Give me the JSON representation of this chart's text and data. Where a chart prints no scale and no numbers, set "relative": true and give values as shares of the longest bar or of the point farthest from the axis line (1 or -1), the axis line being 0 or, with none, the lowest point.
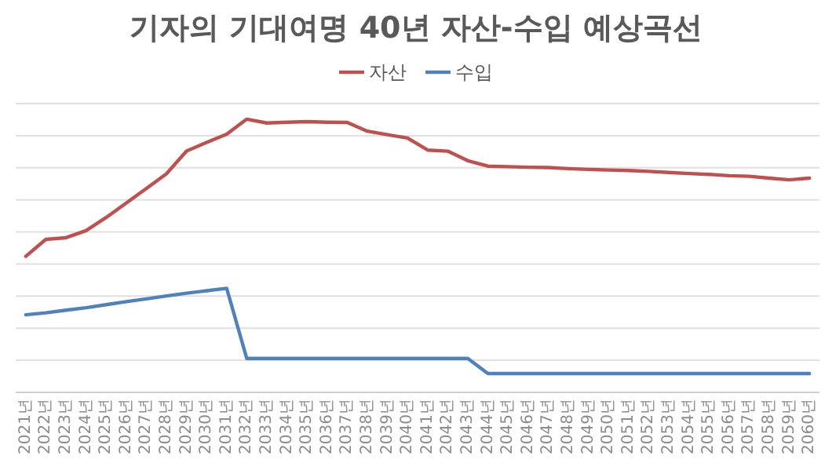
{
  "chart_data": {
    "type": "line",
    "title": "기자의 기대여명 40년 자산-수입 예상곡선",
    "relative": true,
    "grid": "y",
    "legend": "top",
    "categories": [
      "2021년",
      "2022년",
      "2023년",
      "2024년",
      "2025년",
      "2026년",
      "2027년",
      "2028년",
      "2029년",
      "2030년",
      "2031년",
      "2032년",
      "2033년",
      "2034년",
      "2035년",
      "2036년",
      "2037년",
      "2038년",
      "2039년",
      "2040년",
      "2041년",
      "2042년",
      "2043년",
      "2044년",
      "2045년",
      "2046년",
      "2047년",
      "2048년",
      "2049년",
      "2050년",
      "2051년",
      "2052년",
      "2053년",
      "2054년",
      "2055년",
      "2056년",
      "2057년",
      "2058년",
      "2059년",
      "2060년"
    ],
    "series": [
      {
        "name": "자산",
        "color": "#c0504d",
        "values": [
          0.498,
          0.56,
          0.566,
          0.592,
          0.64,
          0.693,
          0.746,
          0.8,
          0.883,
          0.915,
          0.945,
          1.0,
          0.986,
          0.989,
          0.991,
          0.989,
          0.988,
          0.956,
          0.943,
          0.931,
          0.887,
          0.883,
          0.848,
          0.828,
          0.826,
          0.824,
          0.823,
          0.819,
          0.816,
          0.814,
          0.812,
          0.809,
          0.805,
          0.801,
          0.798,
          0.793,
          0.791,
          0.784,
          0.778,
          0.784
        ]
      },
      {
        "name": "수입",
        "color": "#4f81bd",
        "values": [
          0.284,
          0.291,
          0.301,
          0.31,
          0.321,
          0.332,
          0.342,
          0.353,
          0.363,
          0.372,
          0.381,
          0.124,
          0.124,
          0.124,
          0.124,
          0.124,
          0.124,
          0.124,
          0.124,
          0.124,
          0.124,
          0.124,
          0.124,
          0.069,
          0.069,
          0.069,
          0.069,
          0.069,
          0.069,
          0.069,
          0.069,
          0.069,
          0.069,
          0.069,
          0.069,
          0.069,
          0.069,
          0.069,
          0.069,
          0.069
        ]
      }
    ]
  }
}
